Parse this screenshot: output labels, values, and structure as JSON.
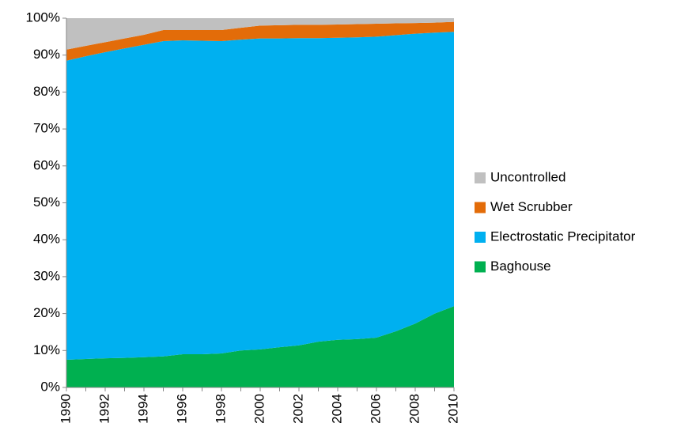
{
  "chart_data": {
    "type": "stacked-area",
    "x": [
      1990,
      1991,
      1992,
      1993,
      1994,
      1995,
      1996,
      1997,
      1998,
      1999,
      2000,
      2001,
      2002,
      2003,
      2004,
      2005,
      2006,
      2007,
      2008,
      2009,
      2010
    ],
    "xlim": [
      1990,
      2010
    ],
    "xticks": [
      1990,
      1992,
      1994,
      1996,
      1998,
      2000,
      2002,
      2004,
      2006,
      2008,
      2010
    ],
    "ylim": [
      0,
      100
    ],
    "yticks": [
      {
        "value": 0,
        "label": "0%"
      },
      {
        "value": 10,
        "label": "10%"
      },
      {
        "value": 20,
        "label": "20%"
      },
      {
        "value": 30,
        "label": "30%"
      },
      {
        "value": 40,
        "label": "40%"
      },
      {
        "value": 50,
        "label": "50%"
      },
      {
        "value": 60,
        "label": "60%"
      },
      {
        "value": 70,
        "label": "70%"
      },
      {
        "value": 80,
        "label": "80%"
      },
      {
        "value": 90,
        "label": "90%"
      },
      {
        "value": 100,
        "label": "100%"
      }
    ],
    "legend": "right",
    "series": [
      {
        "name": "Baghouse",
        "color": "#00b050",
        "values": [
          7.5,
          7.7,
          7.9,
          8.0,
          8.2,
          8.4,
          9.0,
          9.0,
          9.2,
          10.0,
          10.3,
          10.9,
          11.4,
          12.4,
          12.9,
          13.1,
          13.5,
          15.2,
          17.3,
          20.0,
          22.0
        ]
      },
      {
        "name": "Electrostatic Precipitator",
        "color": "#00b0f0",
        "values": [
          81.0,
          82.0,
          82.9,
          83.8,
          84.6,
          85.4,
          85.0,
          84.9,
          84.6,
          84.2,
          84.2,
          83.6,
          83.2,
          82.2,
          81.8,
          81.7,
          81.5,
          80.2,
          78.5,
          76.1,
          74.3
        ]
      },
      {
        "name": "Wet Scrubber",
        "color": "#e36c09",
        "values": [
          3.0,
          2.8,
          2.7,
          2.7,
          2.7,
          3.0,
          2.8,
          2.9,
          3.0,
          3.2,
          3.5,
          3.6,
          3.6,
          3.6,
          3.6,
          3.6,
          3.5,
          3.2,
          2.9,
          2.7,
          2.7
        ]
      },
      {
        "name": "Uncontrolled",
        "color": "#c0c0c0",
        "values": [
          8.5,
          7.5,
          6.5,
          5.5,
          4.5,
          3.2,
          3.2,
          3.2,
          3.2,
          2.6,
          2.0,
          1.9,
          1.8,
          1.8,
          1.7,
          1.6,
          1.5,
          1.4,
          1.3,
          1.2,
          1.0
        ]
      }
    ]
  }
}
